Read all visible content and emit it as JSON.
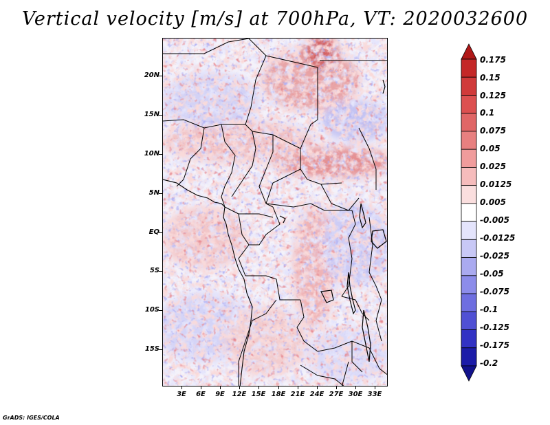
{
  "title": "Vertical velocity [m/s] at 700hPa, VT: 2020032600",
  "lat_labels": [
    "20N",
    "15N",
    "10N",
    "5N",
    "EQ",
    "5S",
    "10S",
    "15S"
  ],
  "lon_labels": [
    "3E",
    "6E",
    "9E",
    "12E",
    "15E",
    "18E",
    "21E",
    "24E",
    "27E",
    "30E",
    "33E"
  ],
  "colorbar": {
    "labels": [
      "0.175",
      "0.15",
      "0.125",
      "0.1",
      "0.075",
      "0.05",
      "0.025",
      "0.0125",
      "0.005",
      "-0.005",
      "-0.0125",
      "-0.025",
      "-0.05",
      "-0.075",
      "-0.1",
      "-0.125",
      "-0.175",
      "-0.2"
    ],
    "colors_top_to_bottom": [
      "#b01818",
      "#c42828",
      "#d03a3a",
      "#dc5050",
      "#e06666",
      "#e88080",
      "#f09c9c",
      "#f6bcbc",
      "#fadede",
      "#ffffff",
      "#e4e4fc",
      "#c8c8f6",
      "#aaaaf0",
      "#8c8cea",
      "#6e6ee0",
      "#5050d4",
      "#3232c4",
      "#1c1ca8",
      "#12128c"
    ]
  },
  "footer": "GrADS: IGES/COLA"
}
